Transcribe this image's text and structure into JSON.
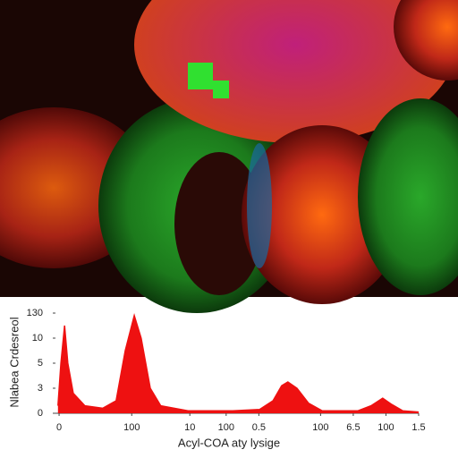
{
  "chart_data": {
    "type": "area",
    "ylabel": "Nlabea Crdesreol",
    "xlabel": "Acyl-COA aty lysige",
    "color": "#ee1111",
    "xlim": [
      0,
      100
    ],
    "ylim": [
      0,
      4
    ],
    "xticks": [
      {
        "value": 1,
        "label": "0"
      },
      {
        "value": 21,
        "label": "100"
      },
      {
        "value": 37,
        "label": "10"
      },
      {
        "value": 47,
        "label": "100"
      },
      {
        "value": 56,
        "label": "0.5"
      },
      {
        "value": 73,
        "label": "100"
      },
      {
        "value": 82,
        "label": "6.5"
      },
      {
        "value": 91,
        "label": "100"
      },
      {
        "value": 100,
        "label": "1.5"
      }
    ],
    "yticks": [
      {
        "value": 0,
        "label": "0"
      },
      {
        "value": 1,
        "label": "3"
      },
      {
        "value": 2,
        "label": "5"
      },
      {
        "value": 3,
        "label": "10"
      },
      {
        "value": 4,
        "label": "130"
      }
    ],
    "x": [
      0.7,
      1.5,
      2.5,
      3.4,
      4.9,
      8.1,
      13,
      16.7,
      19.2,
      21.7,
      23.6,
      26.1,
      29,
      36.5,
      48.8,
      56.2,
      59.9,
      62.3,
      64,
      66.5,
      69.7,
      73.4,
      83.3,
      86.9,
      90.1,
      92.6,
      95.6,
      100
    ],
    "values": [
      0.3,
      2.0,
      3.5,
      2.0,
      0.8,
      0.3,
      0.2,
      0.5,
      2.5,
      3.9,
      3.0,
      1.0,
      0.3,
      0.1,
      0.1,
      0.15,
      0.5,
      1.1,
      1.25,
      1.0,
      0.4,
      0.1,
      0.1,
      0.3,
      0.6,
      0.35,
      0.1,
      0.05
    ]
  }
}
